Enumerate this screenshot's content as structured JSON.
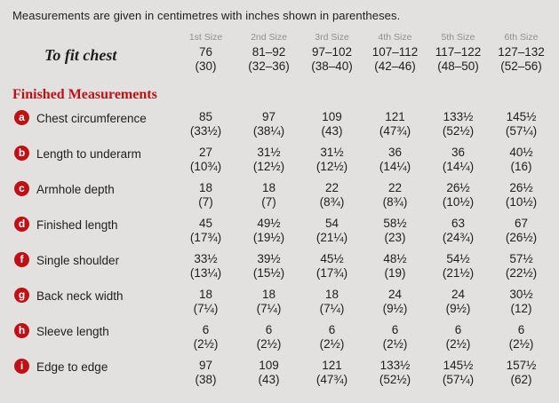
{
  "colors": {
    "background": "#e2e1df",
    "accent": "#c01014",
    "text": "#1e1e1c",
    "muted": "#8f8f8d",
    "badge_letter": "#ffffff"
  },
  "note": "Measurements are given in centimetres with inches shown in parentheses.",
  "table": {
    "size_headers": [
      "1st Size",
      "2nd Size",
      "3rd Size",
      "4th Size",
      "5th Size",
      "6th Size"
    ],
    "to_fit_chest": {
      "label": "To fit chest",
      "cm": [
        "76",
        "81–92",
        "97–102",
        "107–112",
        "117–122",
        "127–132"
      ],
      "inches": [
        "(30)",
        "(32–36)",
        "(38–40)",
        "(42–46)",
        "(48–50)",
        "(52–56)"
      ]
    },
    "section_heading": "Finished Measurements",
    "rows": [
      {
        "letter": "a",
        "label": "Chest circumference",
        "cm": [
          "85",
          "97",
          "109",
          "121",
          "133½",
          "145½"
        ],
        "inches": [
          "(33½)",
          "(38¼)",
          "(43)",
          "(47¾)",
          "(52½)",
          "(57¼)"
        ]
      },
      {
        "letter": "b",
        "label": "Length to underarm",
        "cm": [
          "27",
          "31½",
          "31½",
          "36",
          "36",
          "40½"
        ],
        "inches": [
          "(10¾)",
          "(12½)",
          "(12½)",
          "(14¼)",
          "(14¼)",
          "(16)"
        ]
      },
      {
        "letter": "c",
        "label": "Armhole depth",
        "cm": [
          "18",
          "18",
          "22",
          "22",
          "26½",
          "26½"
        ],
        "inches": [
          "(7)",
          "(7)",
          "(8¾)",
          "(8¾)",
          "(10½)",
          "(10½)"
        ]
      },
      {
        "letter": "d",
        "label": "Finished length",
        "cm": [
          "45",
          "49½",
          "54",
          "58½",
          "63",
          "67"
        ],
        "inches": [
          "(17¾)",
          "(19½)",
          "(21¼)",
          "(23)",
          "(24¾)",
          "(26½)"
        ]
      },
      {
        "letter": "f",
        "label": "Single shoulder",
        "cm": [
          "33½",
          "39½",
          "45½",
          "48½",
          "54½",
          "57½"
        ],
        "inches": [
          "(13¼)",
          "(15½)",
          "(17¾)",
          "(19)",
          "(21½)",
          "(22½)"
        ]
      },
      {
        "letter": "g",
        "label": "Back neck width",
        "cm": [
          "18",
          "18",
          "18",
          "24",
          "24",
          "30½"
        ],
        "inches": [
          "(7¼)",
          "(7¼)",
          "(7¼)",
          "(9½)",
          "(9½)",
          "(12)"
        ]
      },
      {
        "letter": "h",
        "label": "Sleeve length",
        "cm": [
          "6",
          "6",
          "6",
          "6",
          "6",
          "6"
        ],
        "inches": [
          "(2½)",
          "(2½)",
          "(2½)",
          "(2½)",
          "(2½)",
          "(2½)"
        ]
      },
      {
        "letter": "i",
        "label": "Edge to edge",
        "cm": [
          "97",
          "109",
          "121",
          "133½",
          "145½",
          "157½"
        ],
        "inches": [
          "(38)",
          "(43)",
          "(47¾)",
          "(52½)",
          "(57¼)",
          "(62)"
        ]
      }
    ]
  }
}
